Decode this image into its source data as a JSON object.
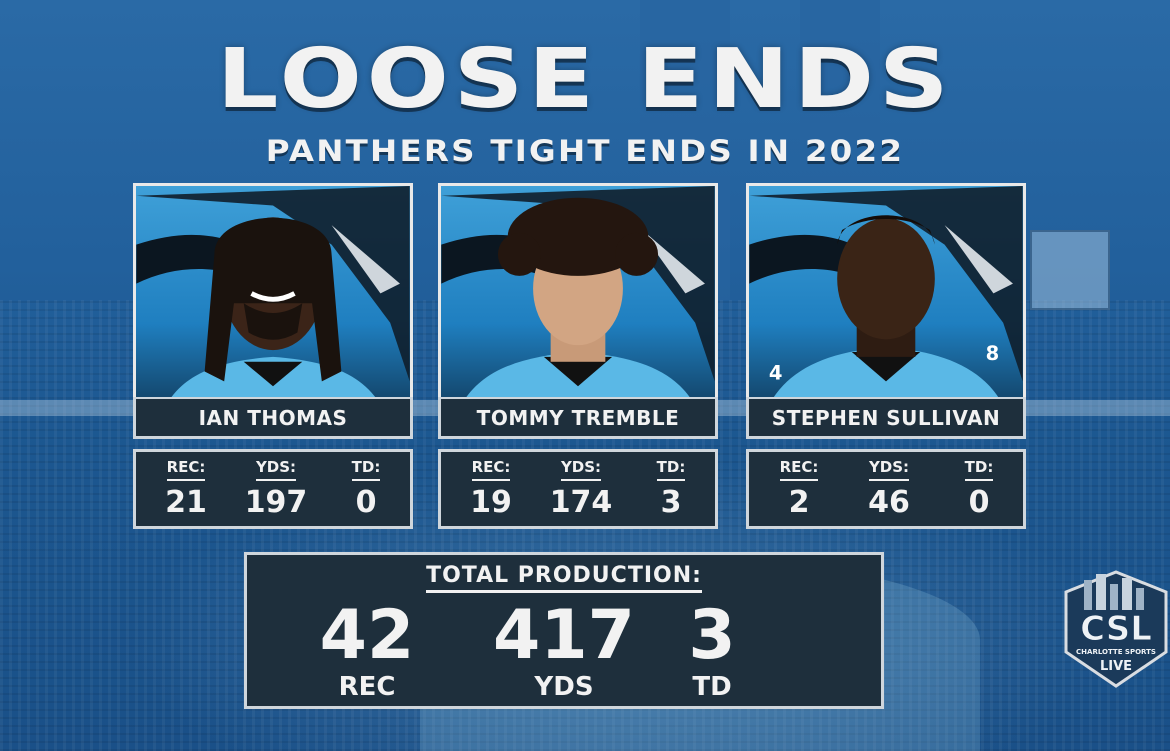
{
  "header": {
    "title": "LOOSE ENDS",
    "subtitle": "PANTHERS TIGHT ENDS IN 2022"
  },
  "colors": {
    "background": "#1e5a92",
    "panel": "#1e2f3c",
    "text": "#f2f2f2",
    "panthers_blue": "#3fa0d8"
  },
  "players": [
    {
      "name": "IAN THOMAS",
      "stats": {
        "rec_label": "REC:",
        "rec": "21",
        "yds_label": "YDS:",
        "yds": "197",
        "td_label": "TD:",
        "td": "0"
      }
    },
    {
      "name": "TOMMY TREMBLE",
      "stats": {
        "rec_label": "REC:",
        "rec": "19",
        "yds_label": "YDS:",
        "yds": "174",
        "td_label": "TD:",
        "td": "3"
      }
    },
    {
      "name": "STEPHEN SULLIVAN",
      "stats": {
        "rec_label": "REC:",
        "rec": "2",
        "yds_label": "YDS:",
        "yds": "46",
        "td_label": "TD:",
        "td": "0"
      }
    }
  ],
  "jersey_numbers": [
    "4",
    "8"
  ],
  "total": {
    "heading": "TOTAL PRODUCTION:",
    "rec": "42",
    "rec_label": "REC",
    "yds": "417",
    "yds_label": "YDS",
    "td": "3",
    "td_label": "TD"
  },
  "logo": {
    "abbr": "CSL",
    "name": "CHARLOTTE SPORTS",
    "tagline": "LIVE"
  }
}
